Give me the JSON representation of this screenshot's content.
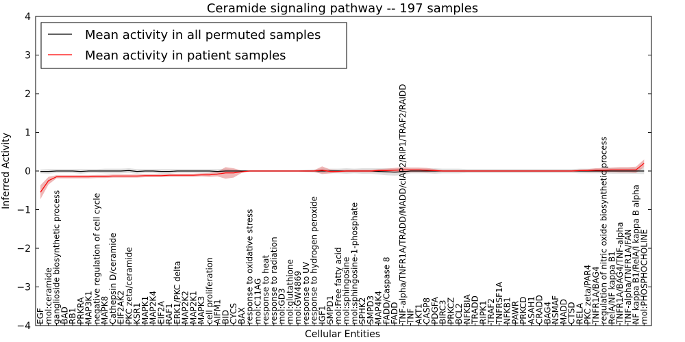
{
  "chart_data": {
    "type": "line",
    "title": "Ceramide signaling pathway -- 197 samples",
    "xlabel": "Cellular Entities",
    "ylabel": "Inferred Activity",
    "ylim": [
      -4,
      4
    ],
    "yticks": [
      -4,
      -3,
      -2,
      -1,
      0,
      1,
      2,
      3,
      4
    ],
    "grid": false,
    "legend_position": "top-left",
    "categories": [
      "EGF",
      "mol:ceramide",
      "ganglioside biosynthetic process",
      "BAD",
      "RB1",
      "PRKRA",
      "MAP3K1",
      "negative regulation of cell cycle",
      "MAPK8",
      "Cathepsin D/ceramide",
      "EIF2AK2",
      "PKC zeta/ceramide",
      "KSR1",
      "MAPK1",
      "MAP2K4",
      "EIF2A",
      "RAF1",
      "ERK1/PKC delta",
      "MAP2K2",
      "MAP2K1",
      "MAPK3",
      "cell proliferation",
      "AIFM1",
      "BID",
      "CYCS",
      "BAX",
      "response to oxidative stress",
      "mol:C11AG",
      "response to heat",
      "response to radiation",
      "mol:GD3",
      "mol:glutathione",
      "mol:GW4869",
      "response to UV",
      "response to hydrogen peroxide",
      "IGF1",
      "SMPD1",
      "mol:Free fatty acid",
      "mol:sphingosine",
      "mol:sphingosine-1-phosphate",
      "SPHK2",
      "SMPD3",
      "MAP4K4",
      "FADD/Caspase 8",
      "FADD",
      "TNF-alpha/TNFR1A/TRADD/MADD/cIAP2/RIP1/TRAF2/RAIDD",
      "TNF",
      "AKT1",
      "CASP8",
      "PDGFA",
      "BIRC3",
      "PRKCZ",
      "BCL2",
      "NFKBIA",
      "TRADD",
      "RIPK1",
      "TRAF2",
      "TNFRSF1A",
      "NFKB1",
      "PAWR",
      "PRKCD",
      "ASAH1",
      "CRADD",
      "BAG4",
      "NSMAF",
      "MADD",
      "CTSD",
      "RELA",
      "PKC zeta/PAR4",
      "TNFR1A/BAG4",
      "regulation of nitric oxide biosynthetic process",
      "RelA/NF kappa B1",
      "TNFR1A/BAG4/TNF-alpha",
      "TNF-alpha/TNFR1A/FAN",
      "NF kappa B1/RelA/I kappa B alpha",
      "mol:PHOSPHOCHOLINE"
    ],
    "series": [
      {
        "name": "Mean activity in all permuted samples",
        "color": "#000000",
        "values": [
          -0.01,
          -0.01,
          0,
          0,
          0,
          -0.01,
          0,
          0,
          0,
          0,
          0,
          0.01,
          -0.01,
          0,
          0,
          -0.01,
          -0.01,
          0,
          0,
          0,
          0,
          0,
          -0.01,
          0,
          0,
          0,
          0,
          0,
          0,
          0,
          0,
          0,
          0,
          0,
          0,
          0,
          0,
          0,
          0,
          0,
          0,
          0,
          -0.01,
          -0.02,
          -0.03,
          -0.02,
          0,
          0,
          0,
          0,
          0,
          0,
          0,
          0,
          0,
          0,
          0,
          0,
          0,
          0,
          0,
          0,
          0,
          0,
          0,
          0,
          0,
          0,
          0,
          0,
          0,
          0,
          0,
          0,
          0,
          0
        ],
        "band": [
          0.05,
          0.06,
          0.05,
          0.05,
          0.05,
          0.06,
          0.05,
          0.05,
          0.06,
          0.06,
          0.06,
          0.06,
          0.06,
          0.05,
          0.05,
          0.06,
          0.06,
          0.05,
          0.05,
          0.05,
          0.05,
          0.05,
          0.06,
          0.06,
          0.04,
          0.02,
          0.02,
          0.02,
          0.02,
          0.02,
          0.02,
          0.02,
          0.02,
          0.03,
          0.04,
          0.06,
          0.06,
          0.06,
          0.07,
          0.06,
          0.07,
          0.07,
          0.08,
          0.09,
          0.09,
          0.09,
          0.06,
          0.06,
          0.06,
          0.07,
          0.06,
          0.06,
          0.06,
          0.05,
          0.05,
          0.05,
          0.05,
          0.05,
          0.05,
          0.05,
          0.05,
          0.05,
          0.05,
          0.05,
          0.05,
          0.05,
          0.05,
          0.06,
          0.06,
          0.06,
          0.06,
          0.07,
          0.07,
          0.07,
          0.07,
          0.08
        ]
      },
      {
        "name": "Mean activity in patient samples",
        "color": "#ff0000",
        "band_color": "#e07070",
        "values": [
          -0.55,
          -0.25,
          -0.15,
          -0.15,
          -0.15,
          -0.15,
          -0.15,
          -0.14,
          -0.14,
          -0.13,
          -0.13,
          -0.13,
          -0.13,
          -0.12,
          -0.12,
          -0.12,
          -0.11,
          -0.11,
          -0.11,
          -0.11,
          -0.1,
          -0.1,
          -0.08,
          -0.05,
          -0.05,
          -0.02,
          0,
          0,
          0,
          0,
          0,
          0,
          0,
          0,
          0,
          0.02,
          -0.01,
          -0.01,
          0,
          0,
          0,
          0,
          0.01,
          0.01,
          0.02,
          0.03,
          0.03,
          0.03,
          0.02,
          0.01,
          0,
          0,
          0,
          0,
          0,
          0,
          0,
          0,
          0,
          0,
          0,
          0,
          0,
          0,
          0,
          0,
          0,
          0.01,
          0.01,
          0.02,
          0.02,
          0.03,
          0.03,
          0.03,
          0.03,
          0.2
        ],
        "band": [
          0.18,
          0.1,
          0.04,
          0.04,
          0.04,
          0.04,
          0.04,
          0.04,
          0.04,
          0.04,
          0.04,
          0.04,
          0.04,
          0.04,
          0.04,
          0.04,
          0.04,
          0.04,
          0.04,
          0.04,
          0.04,
          0.05,
          0.06,
          0.15,
          0.12,
          0.03,
          0.01,
          0.01,
          0.01,
          0.01,
          0.01,
          0.01,
          0.01,
          0.02,
          0.02,
          0.1,
          0.05,
          0.03,
          0.03,
          0.03,
          0.03,
          0.03,
          0.04,
          0.05,
          0.06,
          0.07,
          0.06,
          0.06,
          0.06,
          0.04,
          0.02,
          0.02,
          0.02,
          0.02,
          0.02,
          0.02,
          0.02,
          0.02,
          0.02,
          0.02,
          0.02,
          0.02,
          0.02,
          0.02,
          0.02,
          0.02,
          0.02,
          0.03,
          0.04,
          0.05,
          0.06,
          0.06,
          0.07,
          0.07,
          0.08,
          0.1
        ]
      }
    ]
  }
}
